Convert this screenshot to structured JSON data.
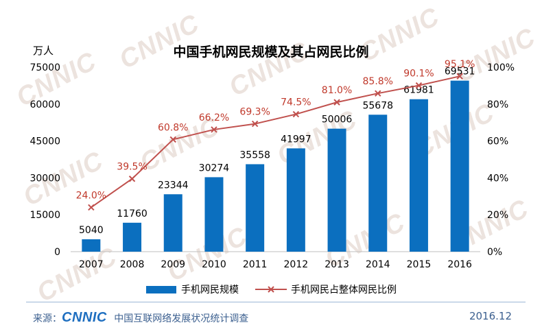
{
  "watermark": "CNNIC",
  "chart_data": {
    "type": "bar",
    "title": "中国手机网民规模及其占网民比例",
    "ylabel": "万人",
    "categories": [
      "2007",
      "2008",
      "2009",
      "2010",
      "2011",
      "2012",
      "2013",
      "2014",
      "2015",
      "2016"
    ],
    "series": [
      {
        "name": "手机网民规模",
        "kind": "bar",
        "axis": "left",
        "values": [
          5040,
          11760,
          23344,
          30274,
          35558,
          41997,
          50006,
          55678,
          61981,
          69531
        ],
        "labels": [
          "5040",
          "11760",
          "23344",
          "30274",
          "35558",
          "41997",
          "50006",
          "55678",
          "61981",
          "69531"
        ]
      },
      {
        "name": "手机网民占整体网民比例",
        "kind": "line",
        "axis": "right",
        "values": [
          24.0,
          39.5,
          60.8,
          66.2,
          69.3,
          74.5,
          81.0,
          85.8,
          90.1,
          95.1
        ],
        "labels": [
          "24.0%",
          "39.5%",
          "60.8%",
          "66.2%",
          "69.3%",
          "74.5%",
          "81.0%",
          "85.8%",
          "90.1%",
          "95.1%"
        ]
      }
    ],
    "y_left": {
      "min": 0,
      "max": 75000,
      "ticks": [
        0,
        15000,
        30000,
        45000,
        60000,
        75000
      ],
      "tick_labels": [
        "0",
        "15000",
        "30000",
        "45000",
        "60000",
        "75000"
      ]
    },
    "y_right": {
      "min": 0,
      "max": 100,
      "ticks": [
        0,
        20,
        40,
        60,
        80,
        100
      ],
      "tick_labels": [
        "0%",
        "20%",
        "40%",
        "60%",
        "80%",
        "100%"
      ]
    },
    "colors": {
      "bar": "#0b6fbf",
      "line": "#c0504d",
      "label_pct": "#c0392b",
      "text": "#000000"
    },
    "legend_position": "bottom"
  },
  "footer": {
    "source_label": "来源：",
    "brand": "CNNIC",
    "org": "中国互联网络发展状况统计调查",
    "date": "2016.12"
  }
}
